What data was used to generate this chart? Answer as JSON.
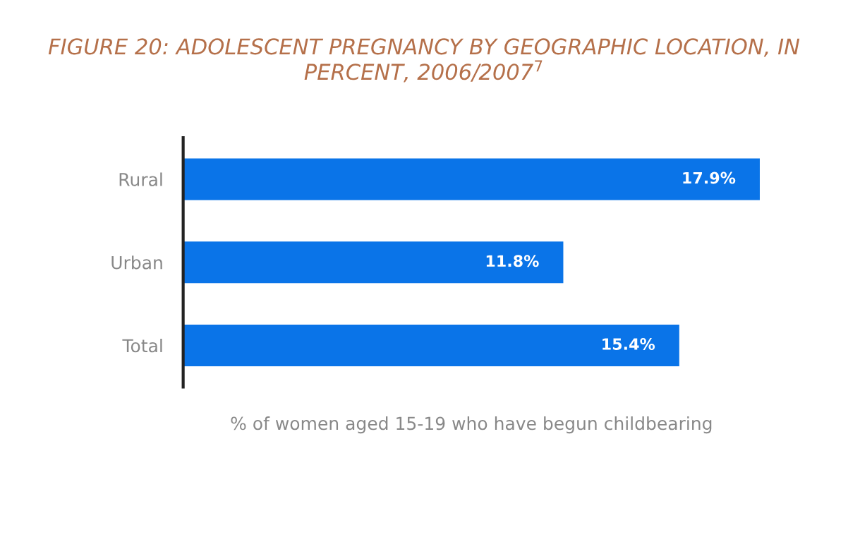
{
  "chart_data": {
    "type": "bar",
    "orientation": "horizontal",
    "title": "FIGURE 20: ADOLESCENT PREGNANCY BY GEOGRAPHIC LOCATION, IN PERCENT, 2006/2007$^{7}$",
    "xlabel": "% of women aged 15-19 who have begun childbearing",
    "categories": [
      "Rural",
      "Urban",
      "Total"
    ],
    "values": [
      17.9,
      11.8,
      15.4
    ],
    "value_labels": [
      "17.9%",
      "11.8%",
      "15.4%"
    ],
    "color": "#0a74e8",
    "grid": false,
    "legend": false,
    "tick_labels": "y"
  }
}
